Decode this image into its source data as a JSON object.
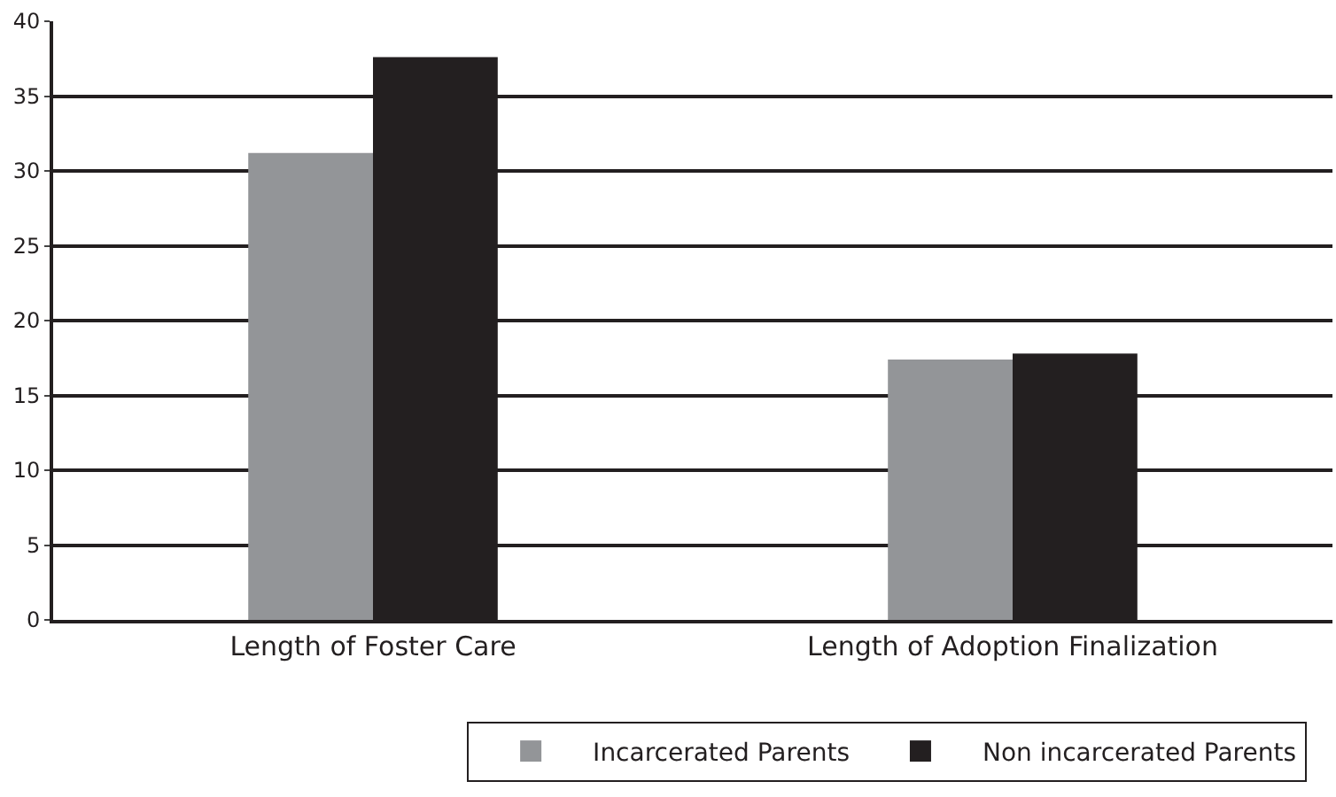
{
  "chart_data": {
    "type": "bar",
    "categories": [
      "Length of Foster Care",
      "Length of Adoption Finalization"
    ],
    "series": [
      {
        "name": "Incarcerated Parents",
        "color": "#939598",
        "values": [
          31.2,
          17.4
        ]
      },
      {
        "name": "Non incarcerated Parents",
        "color": "#231f20",
        "values": [
          37.6,
          17.8
        ]
      }
    ],
    "ylim": [
      0,
      40
    ],
    "yticks": [
      0,
      5,
      10,
      15,
      20,
      25,
      30,
      35,
      40
    ],
    "grid": "y",
    "legend": "bottom"
  }
}
